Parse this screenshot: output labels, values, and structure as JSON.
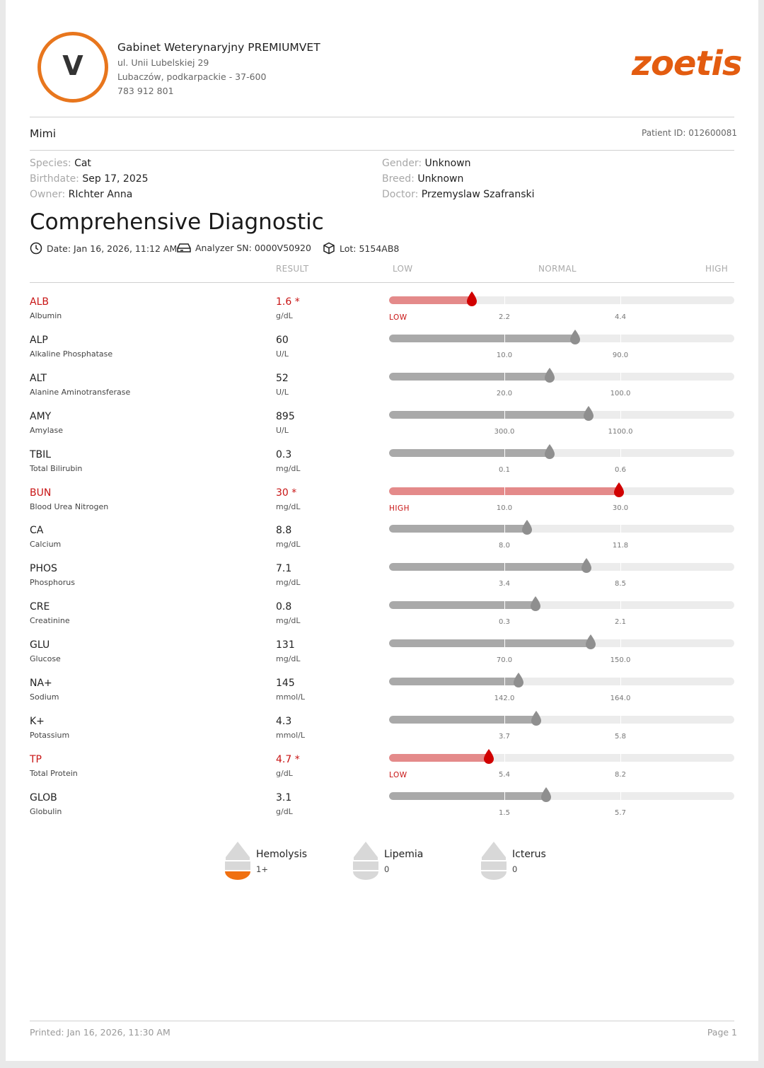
{
  "clinic": {
    "logo_letter": "V",
    "name": "Gabinet Weterynaryjny PREMIUMVET",
    "address1": "ul. Unii Lubelskiej 29",
    "address2": "Lubaczów, podkarpackie - 37-600",
    "phone": "783 912 801"
  },
  "brand": "zoetis",
  "patient": {
    "name": "Mimi",
    "id_label": "Patient ID: 012600081",
    "species_label": "Species:",
    "species": "Cat",
    "birthdate_label": "Birthdate:",
    "birthdate": "Sep 17, 2025",
    "owner_label": "Owner:",
    "owner": "RIchter Anna",
    "gender_label": "Gender:",
    "gender": "Unknown",
    "breed_label": "Breed:",
    "breed": "Unknown",
    "doctor_label": "Doctor:",
    "doctor": "Przemyslaw Szafranski"
  },
  "report": {
    "title": "Comprehensive Diagnostic",
    "date": "Date: Jan 16, 2026, 11:12 AM",
    "analyzer": "Analyzer SN: 0000V50920",
    "lot": "Lot: 5154AB8"
  },
  "columns": {
    "result": "RESULT",
    "low": "LOW",
    "normal": "NORMAL",
    "high": "HIGH"
  },
  "colors": {
    "flag": "#c81414",
    "fill_normal": "#a9a9a9",
    "fill_flag": "#e48a8a",
    "drop_normal": "#8f8f8f",
    "drop_flag": "#d10000",
    "accent": "#e8761d"
  },
  "results": [
    {
      "code": "ALB",
      "name": "Albumin",
      "value": "1.6 *",
      "unit": "g/dL",
      "low": "2.2",
      "high": "4.4",
      "level": 0.24,
      "flag": true,
      "status": "LOW"
    },
    {
      "code": "ALP",
      "name": "Alkaline Phosphatase",
      "value": "60",
      "unit": "U/L",
      "low": "10.0",
      "high": "90.0",
      "level": 0.539,
      "flag": false,
      "status": ""
    },
    {
      "code": "ALT",
      "name": "Alanine Aminotransferase",
      "value": "52",
      "unit": "U/L",
      "low": "20.0",
      "high": "100.0",
      "level": 0.465,
      "flag": false,
      "status": ""
    },
    {
      "code": "AMY",
      "name": "Amylase",
      "value": "895",
      "unit": "U/L",
      "low": "300.0",
      "high": "1100.0",
      "level": 0.578,
      "flag": false,
      "status": ""
    },
    {
      "code": "TBIL",
      "name": "Total Bilirubin",
      "value": "0.3",
      "unit": "mg/dL",
      "low": "0.1",
      "high": "0.6",
      "level": 0.465,
      "flag": false,
      "status": ""
    },
    {
      "code": "BUN",
      "name": "Blood Urea Nitrogen",
      "value": "30 *",
      "unit": "mg/dL",
      "low": "10.0",
      "high": "30.0",
      "level": 0.666,
      "flag": true,
      "status": "HIGH"
    },
    {
      "code": "CA",
      "name": "Calcium",
      "value": "8.8",
      "unit": "mg/dL",
      "low": "8.0",
      "high": "11.8",
      "level": 0.4,
      "flag": false,
      "status": ""
    },
    {
      "code": "PHOS",
      "name": "Phosphorus",
      "value": "7.1",
      "unit": "mg/dL",
      "low": "3.4",
      "high": "8.5",
      "level": 0.571,
      "flag": false,
      "status": ""
    },
    {
      "code": "CRE",
      "name": "Creatinine",
      "value": "0.8",
      "unit": "mg/dL",
      "low": "0.3",
      "high": "2.1",
      "level": 0.424,
      "flag": false,
      "status": ""
    },
    {
      "code": "GLU",
      "name": "Glucose",
      "value": "131",
      "unit": "mg/dL",
      "low": "70.0",
      "high": "150.0",
      "level": 0.584,
      "flag": false,
      "status": ""
    },
    {
      "code": "NA+",
      "name": "Sodium",
      "value": "145",
      "unit": "mmol/L",
      "low": "142.0",
      "high": "164.0",
      "level": 0.375,
      "flag": false,
      "status": ""
    },
    {
      "code": "K+",
      "name": "Potassium",
      "value": "4.3",
      "unit": "mmol/L",
      "low": "3.7",
      "high": "5.8",
      "level": 0.426,
      "flag": false,
      "status": ""
    },
    {
      "code": "TP",
      "name": "Total Protein",
      "value": "4.7 *",
      "unit": "g/dL",
      "low": "5.4",
      "high": "8.2",
      "level": 0.289,
      "flag": true,
      "status": "LOW"
    },
    {
      "code": "GLOB",
      "name": "Globulin",
      "value": "3.1",
      "unit": "g/dL",
      "low": "1.5",
      "high": "5.7",
      "level": 0.455,
      "flag": false,
      "status": ""
    }
  ],
  "indices": [
    {
      "name": "Hemolysis",
      "value": "1+",
      "color": "#f07010",
      "filled": true
    },
    {
      "name": "Lipemia",
      "value": "0",
      "color": "#d8d8d8",
      "filled": false
    },
    {
      "name": "Icterus",
      "value": "0",
      "color": "#d8d8d8",
      "filled": false
    }
  ],
  "footer": {
    "printed": "Printed: Jan 16, 2026, 11:30 AM",
    "page": "Page 1"
  }
}
